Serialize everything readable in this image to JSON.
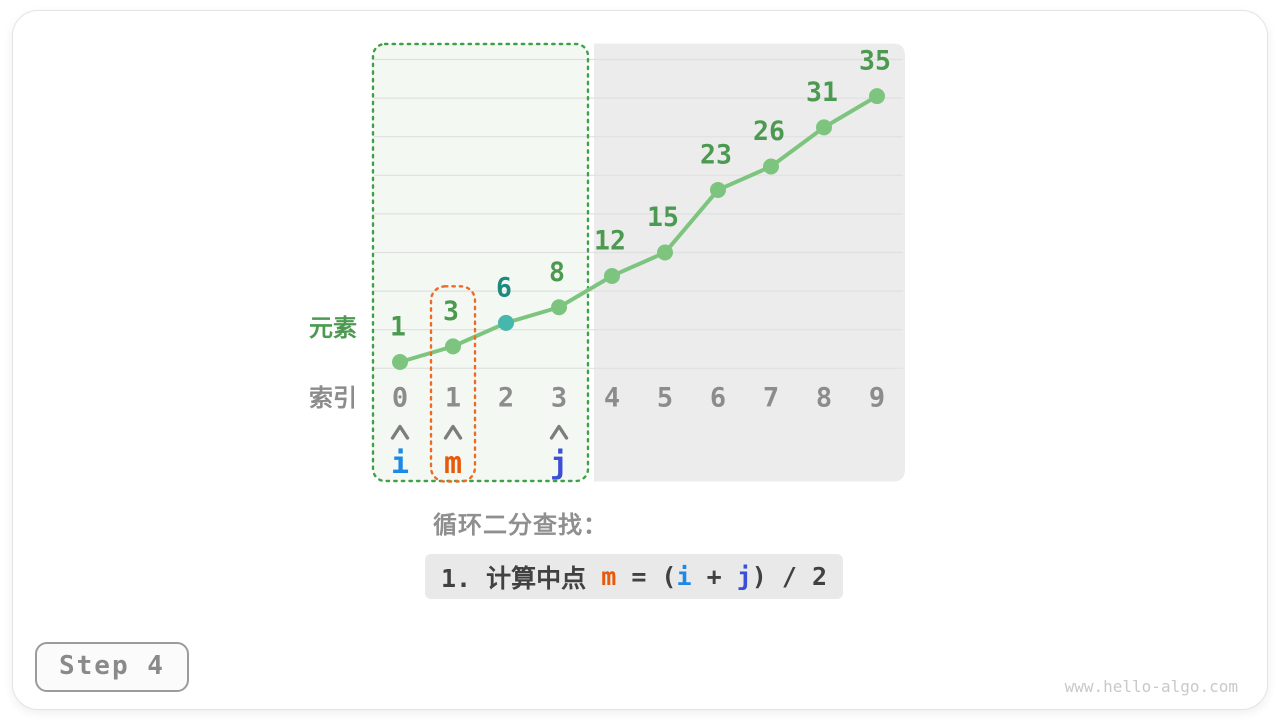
{
  "colors": {
    "card-border": "#e4e4e4",
    "green-line": "#7dc57f",
    "green-text": "#4c9a51",
    "green-border": "#3fa047",
    "green-bg": "#f3f9f2",
    "teal-dot": "#45b7ab",
    "teal-text": "#1d8a7e",
    "gray-region": "#ececec",
    "gridline": "#e0e0e0",
    "index-text": "#8c8c8c",
    "arrow": "#7d7d7d",
    "orange-border": "#ee6a26",
    "formula-bg": "#e9e9e9",
    "formula-text": "#414141",
    "caption-text": "#8f8f8f",
    "step-text": "#8a8a8a",
    "step-border": "#9b9b9b",
    "step-bg": "#fbfbfb",
    "watermark": "#c9c9c9"
  },
  "figure": {
    "step_label": "Step 4",
    "watermark": "www.hello-algo.com",
    "caption_title": "循环二分查找：",
    "formula": [
      {
        "text": "1. 计算中点 ",
        "color": "#414141"
      },
      {
        "text": "m",
        "color": "#e8590c"
      },
      {
        "text": " = (",
        "color": "#414141"
      },
      {
        "text": "i",
        "color": "#1e88e5"
      },
      {
        "text": " + ",
        "color": "#414141"
      },
      {
        "text": "j",
        "color": "#3d4fd6"
      },
      {
        "text": ") / 2",
        "color": "#414141"
      }
    ]
  },
  "chart_data": {
    "type": "line",
    "x": [
      0,
      1,
      2,
      3,
      4,
      5,
      6,
      7,
      8,
      9
    ],
    "values": [
      1,
      3,
      6,
      8,
      12,
      15,
      23,
      26,
      31,
      35
    ],
    "point_labels": [
      "1",
      "3",
      "6",
      "8",
      "12",
      "15",
      "23",
      "26",
      "31",
      "35"
    ],
    "highlight_value": 6,
    "row_label_values": "元素",
    "row_label_indices": "索引",
    "search_range": {
      "from": 0,
      "to": 3,
      "style": "green-dotted-box"
    },
    "excluded_range": {
      "from": 4,
      "to": 9,
      "style": "gray-region"
    },
    "pointers": [
      {
        "label": "i",
        "index": 0,
        "color": "#1e88e5",
        "boxed": false
      },
      {
        "label": "m",
        "index": 1,
        "color": "#e8590c",
        "boxed": true
      },
      {
        "label": "j",
        "index": 3,
        "color": "#3d4fd6",
        "boxed": false
      }
    ],
    "grid": true,
    "legend": null
  }
}
